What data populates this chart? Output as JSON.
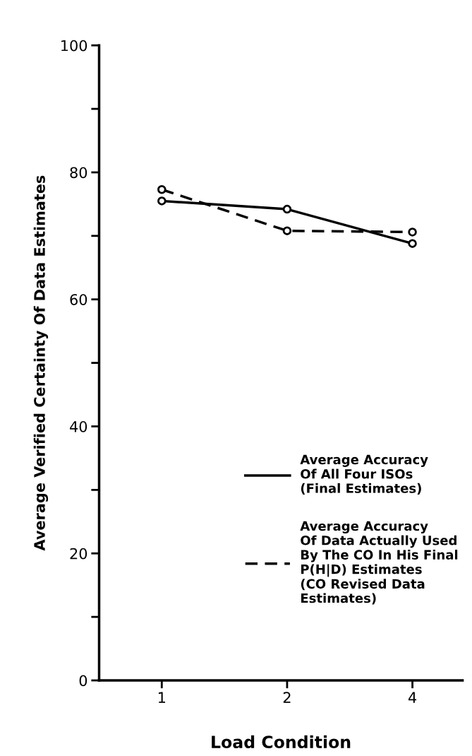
{
  "chart_data": {
    "type": "line",
    "xlabel": "Load Condition",
    "ylabel": "Average Verified Certainty Of Data Estimates",
    "categories": [
      "1",
      "2",
      "4"
    ],
    "series": [
      {
        "name": "Average Accuracy\nOf All Four ISOs\n(Final Estimates)",
        "color": "#000000",
        "values": [
          75.5,
          74.2,
          68.8
        ],
        "line_style": "solid"
      },
      {
        "name": "Average Accuracy\nOf Data Actually Used\nBy The CO In His Final\nP(H|D) Estimates\n(CO Revised Data\nEstimates)",
        "color": "#000000",
        "values": [
          77.3,
          70.8,
          70.6
        ],
        "line_style": "dashed"
      }
    ],
    "ylim": [
      0,
      100
    ],
    "yticks": [
      {
        "value": 0,
        "label": "0"
      },
      {
        "value": 10,
        "label": null
      },
      {
        "value": 20,
        "label": "20"
      },
      {
        "value": 30,
        "label": null
      },
      {
        "value": 40,
        "label": "40"
      },
      {
        "value": 50,
        "label": null
      },
      {
        "value": 60,
        "label": "60"
      },
      {
        "value": 70,
        "label": null
      },
      {
        "value": 80,
        "label": "80"
      },
      {
        "value": 90,
        "label": null
      },
      {
        "value": 100,
        "label": "100"
      }
    ],
    "marker": "circle",
    "legend": "bottom right",
    "grid": false
  }
}
